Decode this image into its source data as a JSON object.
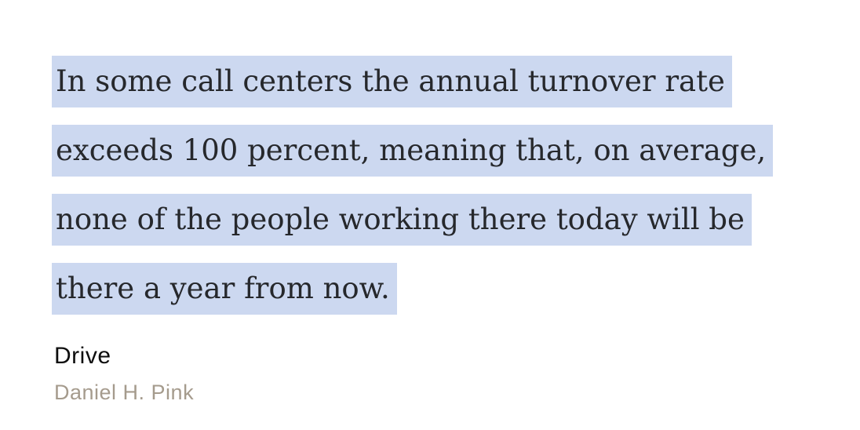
{
  "quote": {
    "lines": [
      "In some call centers the annual turnover rate",
      "exceeds 100 percent, meaning that, on average,",
      "none of the people working there today will be",
      "there a year from now."
    ]
  },
  "source": {
    "title": "Drive",
    "author": "Daniel H. Pink"
  },
  "colors": {
    "background": "#ffffff",
    "highlight": "#ccd8f0",
    "quote_text": "#26282c",
    "title_text": "#0e0e0e",
    "author_text": "#a59b8d"
  }
}
